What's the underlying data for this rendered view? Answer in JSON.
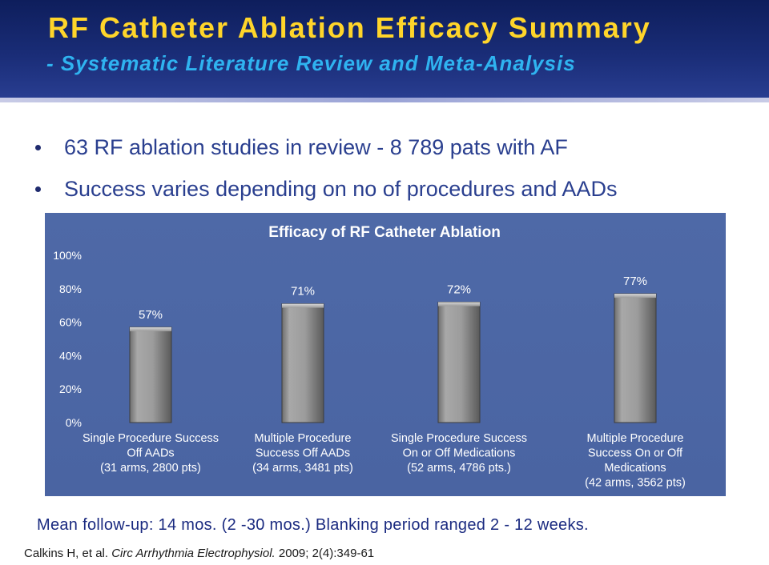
{
  "header": {
    "title": "RF Catheter Ablation Efficacy Summary",
    "subtitle": "- Systematic Literature Review and Meta-Analysis"
  },
  "bullets": [
    "63  RF ablation studies in review - 8 789 pats with AF",
    "Success varies depending on no of procedures and AADs"
  ],
  "chart_data": {
    "type": "bar",
    "title": "Efficacy of RF Catheter Ablation",
    "categories": [
      [
        "Single Procedure Success",
        "Off AADs",
        "(31 arms, 2800 pts)"
      ],
      [
        "Multiple Procedure",
        "Success Off AADs",
        "(34 arms, 3481 pts)"
      ],
      [
        "Single Procedure Success",
        "On or Off Medications",
        "(52 arms, 4786 pts.)"
      ],
      [
        "Multiple Procedure",
        "Success On or Off",
        "Medications",
        "(42 arms, 3562 pts)"
      ]
    ],
    "values": [
      57,
      71,
      72,
      77
    ],
    "value_labels": [
      "57%",
      "71%",
      "72%",
      "77%"
    ],
    "y_ticks": [
      "0%",
      "20%",
      "40%",
      "60%",
      "80%",
      "100%"
    ],
    "ylim": [
      0,
      100
    ],
    "grid": false,
    "colors": {
      "background": "#4b66a4",
      "bar": "#9a9a9a",
      "text": "#ffffff"
    }
  },
  "footnote": "Mean follow-up: 14 mos. (2 -30 mos.) Blanking period ranged 2 - 12 weeks.",
  "citation": {
    "authors": "Calkins H, et al. ",
    "journal": "Circ Arrhythmia Electrophysiol.",
    "details": " 2009; 2(4):349-61"
  }
}
